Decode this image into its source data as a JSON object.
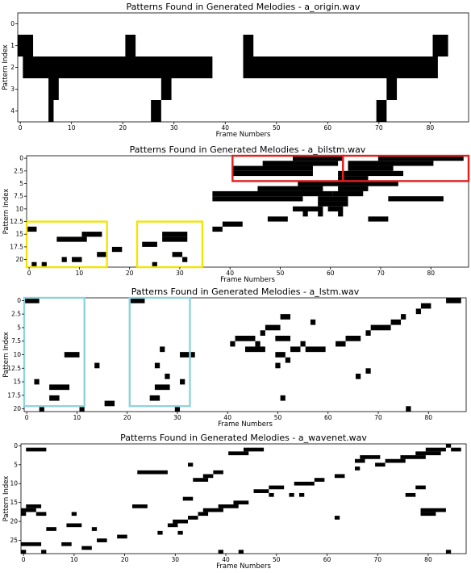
{
  "chart_data": [
    {
      "type": "heatmap",
      "title": "Patterns Found in Generated Melodies - a_origin.wav",
      "xlabel": "Frame Numbers",
      "ylabel": "Pattern Index",
      "xlim": [
        -0.5,
        87.5
      ],
      "ylim": [
        4.5,
        -0.5
      ],
      "xticks": [
        0,
        10,
        20,
        30,
        40,
        50,
        60,
        70,
        80
      ],
      "yticks": [
        0,
        1,
        2,
        3,
        4
      ],
      "cells": [
        {
          "row": 1,
          "x0": 0,
          "x1": 2
        },
        {
          "row": 1,
          "x0": 21,
          "x1": 22
        },
        {
          "row": 1,
          "x0": 44,
          "x1": 45
        },
        {
          "row": 1,
          "x0": 81,
          "x1": 83
        },
        {
          "row": 2,
          "x0": 1,
          "x1": 37
        },
        {
          "row": 2,
          "x0": 44,
          "x1": 81
        },
        {
          "row": 3,
          "x0": 6,
          "x1": 7
        },
        {
          "row": 3,
          "x0": 28,
          "x1": 29
        },
        {
          "row": 3,
          "x0": 72,
          "x1": 73
        },
        {
          "row": 4,
          "x0": 6,
          "x1": 6
        },
        {
          "row": 4,
          "x0": 26,
          "x1": 27
        },
        {
          "row": 4,
          "x0": 70,
          "x1": 71
        }
      ],
      "highlights": []
    },
    {
      "type": "heatmap",
      "title": "Patterns Found in Generated Melodies - a_bilstm.wav",
      "xlabel": "Frame Numbers",
      "ylabel": "Pattern Index",
      "xlim": [
        -0.5,
        87.5
      ],
      "ylim": [
        21.5,
        -0.5
      ],
      "xticks": [
        0,
        10,
        20,
        30,
        40,
        50,
        60,
        70,
        80
      ],
      "yticks": [
        0.0,
        2.5,
        5.0,
        7.5,
        10.0,
        12.5,
        15.0,
        17.5,
        20.0
      ],
      "cells": [
        {
          "row": 0,
          "x0": 53,
          "x1": 62
        },
        {
          "row": 0,
          "x0": 70,
          "x1": 86
        },
        {
          "row": 1,
          "x0": 47,
          "x1": 61
        },
        {
          "row": 1,
          "x0": 64,
          "x1": 80
        },
        {
          "row": 2,
          "x0": 41,
          "x1": 56
        },
        {
          "row": 2,
          "x0": 64,
          "x1": 72
        },
        {
          "row": 3,
          "x0": 41,
          "x1": 56
        },
        {
          "row": 3,
          "x0": 62,
          "x1": 74
        },
        {
          "row": 4,
          "x0": 62,
          "x1": 67
        },
        {
          "row": 5,
          "x0": 54,
          "x1": 73
        },
        {
          "row": 6,
          "x0": 46,
          "x1": 58
        },
        {
          "row": 6,
          "x0": 62,
          "x1": 67
        },
        {
          "row": 7,
          "x0": 37,
          "x1": 60
        },
        {
          "row": 7,
          "x0": 61,
          "x1": 66
        },
        {
          "row": 8,
          "x0": 37,
          "x1": 54
        },
        {
          "row": 8,
          "x0": 58,
          "x1": 63
        },
        {
          "row": 8,
          "x0": 72,
          "x1": 82
        },
        {
          "row": 9,
          "x0": 58,
          "x1": 63
        },
        {
          "row": 10,
          "x0": 53,
          "x1": 58
        },
        {
          "row": 10,
          "x0": 60,
          "x1": 62
        },
        {
          "row": 11,
          "x0": 55,
          "x1": 55
        },
        {
          "row": 11,
          "x0": 58,
          "x1": 58
        },
        {
          "row": 11,
          "x0": 62,
          "x1": 62
        },
        {
          "row": 12,
          "x0": 48,
          "x1": 51
        },
        {
          "row": 12,
          "x0": 68,
          "x1": 71
        },
        {
          "row": 13,
          "x0": 39,
          "x1": 42
        },
        {
          "row": 14,
          "x0": 0,
          "x1": 1
        },
        {
          "row": 14,
          "x0": 37,
          "x1": 38
        },
        {
          "row": 15,
          "x0": 11,
          "x1": 14
        },
        {
          "row": 15,
          "x0": 27,
          "x1": 31
        },
        {
          "row": 16,
          "x0": 6,
          "x1": 11
        },
        {
          "row": 16,
          "x0": 27,
          "x1": 31
        },
        {
          "row": 17,
          "x0": 23,
          "x1": 25
        },
        {
          "row": 18,
          "x0": 17,
          "x1": 18
        },
        {
          "row": 19,
          "x0": 14,
          "x1": 15
        },
        {
          "row": 19,
          "x0": 29,
          "x1": 30
        },
        {
          "row": 20,
          "x0": 7,
          "x1": 7
        },
        {
          "row": 20,
          "x0": 9,
          "x1": 10
        },
        {
          "row": 20,
          "x0": 31,
          "x1": 31
        },
        {
          "row": 21,
          "x0": 1,
          "x1": 1
        },
        {
          "row": 21,
          "x0": 3,
          "x1": 3
        },
        {
          "row": 21,
          "x0": 25,
          "x1": 25
        }
      ],
      "highlights": [
        {
          "color": "#e02020",
          "x0": 40.5,
          "x1": 62.5,
          "y0": -0.5,
          "y1": 4.5
        },
        {
          "color": "#e02020",
          "x0": 62.5,
          "x1": 87.5,
          "y0": -0.5,
          "y1": 4.5
        },
        {
          "color": "#f5e400",
          "x0": -0.5,
          "x1": 15.5,
          "y0": 12.5,
          "y1": 21.5
        },
        {
          "color": "#f5e400",
          "x0": 21.5,
          "x1": 34.5,
          "y0": 12.5,
          "y1": 21.5
        }
      ]
    },
    {
      "type": "heatmap",
      "title": "Patterns Found in Generated Melodies - a_lstm.wav",
      "xlabel": "Frame Numbers",
      "ylabel": "Pattern Index",
      "xlim": [
        -0.5,
        87.5
      ],
      "ylim": [
        20.5,
        -0.5
      ],
      "xticks": [
        0,
        10,
        20,
        30,
        40,
        50,
        60,
        70,
        80
      ],
      "yticks": [
        0.0,
        2.5,
        5.0,
        7.5,
        10.0,
        12.5,
        15.0,
        17.5,
        20.0
      ],
      "cells": [
        {
          "row": 0,
          "x0": 0,
          "x1": 2
        },
        {
          "row": 0,
          "x0": 21,
          "x1": 23
        },
        {
          "row": 0,
          "x0": 84,
          "x1": 86
        },
        {
          "row": 1,
          "x0": 79,
          "x1": 80
        },
        {
          "row": 2,
          "x0": 78,
          "x1": 78
        },
        {
          "row": 3,
          "x0": 51,
          "x1": 52
        },
        {
          "row": 3,
          "x0": 75,
          "x1": 75
        },
        {
          "row": 4,
          "x0": 73,
          "x1": 74
        },
        {
          "row": 4,
          "x0": 57,
          "x1": 57
        },
        {
          "row": 5,
          "x0": 48,
          "x1": 50
        },
        {
          "row": 5,
          "x0": 69,
          "x1": 72
        },
        {
          "row": 6,
          "x0": 47,
          "x1": 47
        },
        {
          "row": 6,
          "x0": 68,
          "x1": 68
        },
        {
          "row": 7,
          "x0": 42,
          "x1": 45
        },
        {
          "row": 7,
          "x0": 50,
          "x1": 52
        },
        {
          "row": 7,
          "x0": 64,
          "x1": 66
        },
        {
          "row": 8,
          "x0": 41,
          "x1": 41
        },
        {
          "row": 8,
          "x0": 46,
          "x1": 46
        },
        {
          "row": 8,
          "x0": 55,
          "x1": 55
        },
        {
          "row": 8,
          "x0": 62,
          "x1": 63
        },
        {
          "row": 9,
          "x0": 44,
          "x1": 47
        },
        {
          "row": 9,
          "x0": 53,
          "x1": 54
        },
        {
          "row": 9,
          "x0": 56,
          "x1": 59
        },
        {
          "row": 9,
          "x0": 27,
          "x1": 27
        },
        {
          "row": 10,
          "x0": 8,
          "x1": 10
        },
        {
          "row": 10,
          "x0": 31,
          "x1": 33
        },
        {
          "row": 10,
          "x0": 50,
          "x1": 51
        },
        {
          "row": 11,
          "x0": 52,
          "x1": 52
        },
        {
          "row": 12,
          "x0": 14,
          "x1": 14
        },
        {
          "row": 12,
          "x0": 26,
          "x1": 26
        },
        {
          "row": 12,
          "x0": 50,
          "x1": 50
        },
        {
          "row": 13,
          "x0": 68,
          "x1": 68
        },
        {
          "row": 14,
          "x0": 28,
          "x1": 28
        },
        {
          "row": 14,
          "x0": 66,
          "x1": 66
        },
        {
          "row": 15,
          "x0": 2,
          "x1": 2
        },
        {
          "row": 15,
          "x0": 31,
          "x1": 31
        },
        {
          "row": 16,
          "x0": 5,
          "x1": 8
        },
        {
          "row": 16,
          "x0": 26,
          "x1": 28
        },
        {
          "row": 18,
          "x0": 5,
          "x1": 6
        },
        {
          "row": 18,
          "x0": 25,
          "x1": 26
        },
        {
          "row": 18,
          "x0": 51,
          "x1": 51
        },
        {
          "row": 19,
          "x0": 16,
          "x1": 17
        },
        {
          "row": 20,
          "x0": 3,
          "x1": 3
        },
        {
          "row": 20,
          "x0": 11,
          "x1": 11
        },
        {
          "row": 20,
          "x0": 30,
          "x1": 30
        },
        {
          "row": 20,
          "x0": 76,
          "x1": 76
        }
      ],
      "highlights": [
        {
          "color": "#8fd3dc",
          "x0": -0.5,
          "x1": 11.5,
          "y0": -0.5,
          "y1": 19.5
        },
        {
          "color": "#8fd3dc",
          "x0": 20.5,
          "x1": 32.5,
          "y0": -0.5,
          "y1": 19.5
        }
      ]
    },
    {
      "type": "heatmap",
      "title": "Patterns Found in Generated Melodies - a_wavenet.wav",
      "xlabel": "Frame Numbers",
      "ylabel": "Pattern Index",
      "xlim": [
        -0.5,
        87.5
      ],
      "ylim": [
        28.5,
        -0.5
      ],
      "xticks": [
        0,
        10,
        20,
        30,
        40,
        50,
        60,
        70,
        80
      ],
      "yticks": [
        0,
        5,
        10,
        15,
        20,
        25
      ],
      "cells": [
        {
          "row": 0,
          "x0": 84,
          "x1": 84
        },
        {
          "row": 1,
          "x0": 1,
          "x1": 4
        },
        {
          "row": 1,
          "x0": 44,
          "x1": 47
        },
        {
          "row": 1,
          "x0": 80,
          "x1": 83
        },
        {
          "row": 1,
          "x0": 85,
          "x1": 86
        },
        {
          "row": 2,
          "x0": 41,
          "x1": 44
        },
        {
          "row": 2,
          "x0": 78,
          "x1": 82
        },
        {
          "row": 3,
          "x0": 67,
          "x1": 70
        },
        {
          "row": 3,
          "x0": 75,
          "x1": 79
        },
        {
          "row": 4,
          "x0": 66,
          "x1": 67
        },
        {
          "row": 4,
          "x0": 72,
          "x1": 75
        },
        {
          "row": 5,
          "x0": 33,
          "x1": 33
        },
        {
          "row": 5,
          "x0": 70,
          "x1": 71
        },
        {
          "row": 6,
          "x0": 66,
          "x1": 66
        },
        {
          "row": 7,
          "x0": 23,
          "x1": 28
        },
        {
          "row": 7,
          "x0": 38,
          "x1": 39
        },
        {
          "row": 8,
          "x0": 36,
          "x1": 37
        },
        {
          "row": 8,
          "x0": 62,
          "x1": 63
        },
        {
          "row": 9,
          "x0": 34,
          "x1": 36
        },
        {
          "row": 9,
          "x0": 58,
          "x1": 59
        },
        {
          "row": 10,
          "x0": 54,
          "x1": 56
        },
        {
          "row": 10,
          "x0": 57,
          "x1": 57
        },
        {
          "row": 11,
          "x0": 49,
          "x1": 51
        },
        {
          "row": 11,
          "x0": 78,
          "x1": 79
        },
        {
          "row": 12,
          "x0": 46,
          "x1": 48
        },
        {
          "row": 13,
          "x0": 49,
          "x1": 49
        },
        {
          "row": 13,
          "x0": 53,
          "x1": 53
        },
        {
          "row": 13,
          "x0": 55,
          "x1": 55
        },
        {
          "row": 13,
          "x0": 76,
          "x1": 77
        },
        {
          "row": 14,
          "x0": 32,
          "x1": 33
        },
        {
          "row": 15,
          "x0": 42,
          "x1": 44
        },
        {
          "row": 16,
          "x0": 1,
          "x1": 3
        },
        {
          "row": 16,
          "x0": 22,
          "x1": 24
        },
        {
          "row": 16,
          "x0": 39,
          "x1": 42
        },
        {
          "row": 17,
          "x0": 0,
          "x1": 2
        },
        {
          "row": 17,
          "x0": 36,
          "x1": 39
        },
        {
          "row": 17,
          "x0": 79,
          "x1": 83
        },
        {
          "row": 18,
          "x0": 0,
          "x1": 0
        },
        {
          "row": 18,
          "x0": 3,
          "x1": 4
        },
        {
          "row": 18,
          "x0": 10,
          "x1": 10
        },
        {
          "row": 18,
          "x0": 35,
          "x1": 36
        },
        {
          "row": 18,
          "x0": 79,
          "x1": 81
        },
        {
          "row": 19,
          "x0": 33,
          "x1": 34
        },
        {
          "row": 19,
          "x0": 62,
          "x1": 62
        },
        {
          "row": 20,
          "x0": 30,
          "x1": 32
        },
        {
          "row": 21,
          "x0": 9,
          "x1": 11
        },
        {
          "row": 21,
          "x0": 29,
          "x1": 30
        },
        {
          "row": 22,
          "x0": 5,
          "x1": 6
        },
        {
          "row": 22,
          "x0": 14,
          "x1": 14
        },
        {
          "row": 23,
          "x0": 27,
          "x1": 27
        },
        {
          "row": 23,
          "x0": 31,
          "x1": 31
        },
        {
          "row": 24,
          "x0": 19,
          "x1": 20
        },
        {
          "row": 25,
          "x0": 15,
          "x1": 16
        },
        {
          "row": 26,
          "x0": 0,
          "x1": 3
        },
        {
          "row": 26,
          "x0": 8,
          "x1": 9
        },
        {
          "row": 27,
          "x0": 12,
          "x1": 13
        },
        {
          "row": 28,
          "x0": 0,
          "x1": 0
        },
        {
          "row": 28,
          "x0": 4,
          "x1": 4
        },
        {
          "row": 28,
          "x0": 39,
          "x1": 39
        },
        {
          "row": 28,
          "x0": 43,
          "x1": 43
        },
        {
          "row": 28,
          "x0": 84,
          "x1": 84
        }
      ],
      "highlights": []
    }
  ]
}
